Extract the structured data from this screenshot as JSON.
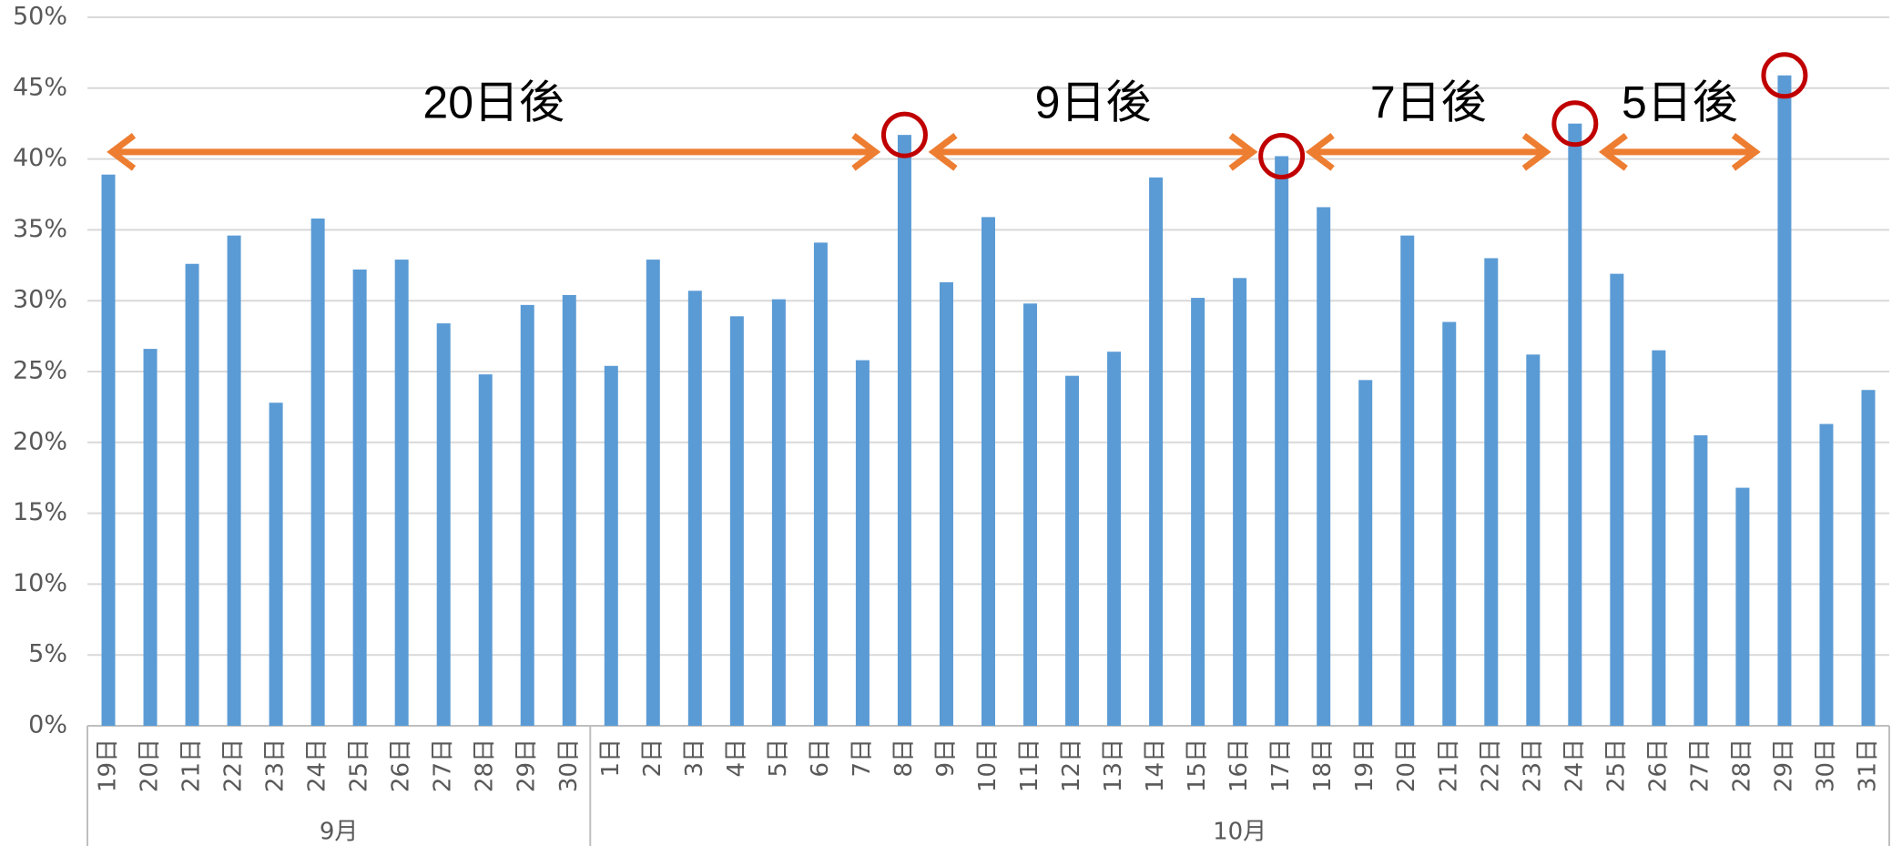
{
  "chart_data": {
    "type": "bar",
    "categories": [
      "19日",
      "20日",
      "21日",
      "22日",
      "23日",
      "24日",
      "25日",
      "26日",
      "27日",
      "28日",
      "29日",
      "30日",
      "1日",
      "2日",
      "3日",
      "4日",
      "5日",
      "6日",
      "7日",
      "8日",
      "9日",
      "10日",
      "11日",
      "12日",
      "13日",
      "14日",
      "15日",
      "16日",
      "17日",
      "18日",
      "19日",
      "20日",
      "21日",
      "22日",
      "23日",
      "24日",
      "25日",
      "26日",
      "27日",
      "28日",
      "29日",
      "30日",
      "31日"
    ],
    "groups": [
      {
        "label": "9月",
        "size": 12
      },
      {
        "label": "10月",
        "size": 31
      }
    ],
    "values": [
      38.9,
      26.6,
      32.6,
      34.6,
      22.8,
      35.8,
      32.2,
      32.9,
      28.4,
      24.8,
      29.7,
      30.4,
      25.4,
      32.9,
      30.7,
      28.9,
      30.1,
      34.1,
      25.8,
      41.7,
      31.3,
      35.9,
      29.8,
      24.7,
      26.4,
      38.7,
      30.2,
      31.6,
      40.2,
      36.6,
      24.4,
      34.6,
      28.5,
      33.0,
      26.2,
      42.5,
      31.9,
      26.5,
      20.5,
      16.8,
      45.9,
      21.3,
      23.7
    ],
    "color": "#5b9bd5",
    "ylim": [
      0,
      50
    ],
    "yticks": [
      {
        "value": 0,
        "label": "0%"
      },
      {
        "value": 5,
        "label": "5%"
      },
      {
        "value": 10,
        "label": "10%"
      },
      {
        "value": 15,
        "label": "15%"
      },
      {
        "value": 20,
        "label": "20%"
      },
      {
        "value": 25,
        "label": "25%"
      },
      {
        "value": 30,
        "label": "30%"
      },
      {
        "value": 35,
        "label": "35%"
      },
      {
        "value": 40,
        "label": "40%"
      },
      {
        "value": 45,
        "label": "45%"
      },
      {
        "value": 50,
        "label": "50%"
      }
    ],
    "grid": true,
    "annotations": [
      {
        "text": "20日後",
        "from": 0,
        "to": 19
      },
      {
        "text": "9日後",
        "from": 19,
        "to": 28
      },
      {
        "text": "7日後",
        "from": 28,
        "to": 35
      },
      {
        "text": "5日後",
        "from": 35,
        "to": 40
      }
    ],
    "highlighted": [
      19,
      28,
      35,
      40
    ],
    "annotation_color": "#ed7d31",
    "highlight_color": "#c00000"
  }
}
